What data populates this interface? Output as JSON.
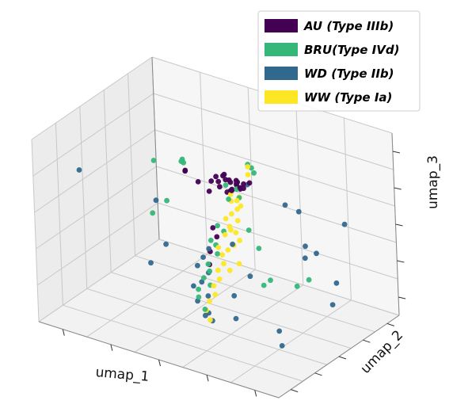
{
  "chart_data": {
    "type": "scatter",
    "projection": "3d",
    "title": "",
    "xlabel": "umap_1",
    "ylabel": "umap_2",
    "zlabel": "umap_3",
    "tick_labels_shown": false,
    "grid": true,
    "legend_position": "top-right",
    "series": [
      {
        "name": "AU (Type IIIb)",
        "color": "#440154",
        "points": [
          [
            5.2,
            5.0,
            7.6
          ],
          [
            5.4,
            5.2,
            7.7
          ],
          [
            5.6,
            5.1,
            7.8
          ],
          [
            5.8,
            5.3,
            7.6
          ],
          [
            6.0,
            5.2,
            7.5
          ],
          [
            5.3,
            4.9,
            7.4
          ],
          [
            5.7,
            5.0,
            7.3
          ],
          [
            5.9,
            5.1,
            7.9
          ],
          [
            6.1,
            5.3,
            7.7
          ],
          [
            5.5,
            5.4,
            7.5
          ],
          [
            5.6,
            5.3,
            7.2
          ],
          [
            5.4,
            5.0,
            8.0
          ],
          [
            6.2,
            5.1,
            7.6
          ],
          [
            5.8,
            4.9,
            7.4
          ],
          [
            5.0,
            5.2,
            7.7
          ],
          [
            6.3,
            5.4,
            7.8
          ],
          [
            5.7,
            5.5,
            7.4
          ],
          [
            5.5,
            5.1,
            7.1
          ],
          [
            4.9,
            5.0,
            7.5
          ],
          [
            6.0,
            5.0,
            7.9
          ],
          [
            5.3,
            5.3,
            7.9
          ],
          [
            5.9,
            5.4,
            7.3
          ],
          [
            3.4,
            5.8,
            7.1
          ],
          [
            3.5,
            5.6,
            7.2
          ],
          [
            4.8,
            5.0,
            6.9
          ],
          [
            4.4,
            4.9,
            7.3
          ],
          [
            5.1,
            4.6,
            5.2
          ],
          [
            5.2,
            4.7,
            4.7
          ],
          [
            5.0,
            4.5,
            3.9
          ],
          [
            4.9,
            4.6,
            3.1
          ]
        ]
      },
      {
        "name": "BRU(Type IVd)",
        "color": "#35b779",
        "points": [
          [
            3.3,
            5.7,
            7.6
          ],
          [
            3.4,
            5.6,
            7.8
          ],
          [
            3.5,
            5.5,
            7.7
          ],
          [
            6.2,
            5.8,
            8.4
          ],
          [
            6.4,
            5.6,
            8.3
          ],
          [
            6.1,
            5.7,
            8.6
          ],
          [
            5.4,
            5.2,
            7.4
          ],
          [
            5.8,
            5.3,
            7.3
          ],
          [
            5.6,
            5.0,
            6.8
          ],
          [
            6.0,
            5.1,
            7.0
          ],
          [
            2.4,
            5.2,
            7.5
          ],
          [
            3.2,
            4.6,
            5.9
          ],
          [
            3.0,
            3.8,
            5.5
          ],
          [
            5.3,
            4.6,
            5.4
          ],
          [
            5.4,
            4.9,
            5.0
          ],
          [
            5.1,
            4.4,
            4.6
          ],
          [
            5.2,
            4.6,
            4.3
          ],
          [
            5.3,
            4.5,
            3.9
          ],
          [
            5.0,
            4.3,
            3.3
          ],
          [
            5.1,
            4.2,
            3.0
          ],
          [
            4.9,
            4.1,
            2.6
          ],
          [
            5.0,
            4.4,
            2.1
          ],
          [
            4.6,
            4.2,
            1.8
          ],
          [
            4.7,
            4.0,
            1.5
          ],
          [
            5.0,
            3.9,
            1.0
          ],
          [
            7.6,
            4.3,
            3.5
          ],
          [
            7.0,
            4.9,
            2.7
          ],
          [
            8.6,
            5.5,
            3.4
          ],
          [
            8.3,
            5.1,
            3.1
          ],
          [
            6.3,
            5.2,
            5.3
          ],
          [
            6.8,
            5.0,
            4.6
          ]
        ]
      },
      {
        "name": "WD (Type IIb)",
        "color": "#31688e",
        "points": [
          [
            0.6,
            2.6,
            7.4
          ],
          [
            7.3,
            6.3,
            6.6
          ],
          [
            6.0,
            5.8,
            7.4
          ],
          [
            2.8,
            4.5,
            5.8
          ],
          [
            5.8,
            4.8,
            4.5
          ],
          [
            5.0,
            4.4,
            4.1
          ],
          [
            4.8,
            4.3,
            3.6
          ],
          [
            4.6,
            4.2,
            3.1
          ],
          [
            4.9,
            4.5,
            2.7
          ],
          [
            4.7,
            4.3,
            2.2
          ],
          [
            5.0,
            4.2,
            1.6
          ],
          [
            4.6,
            4.1,
            1.2
          ],
          [
            5.1,
            4.0,
            0.8
          ],
          [
            5.3,
            3.9,
            0.5
          ],
          [
            4.8,
            4.3,
            0.4
          ],
          [
            4.4,
            4.2,
            1.9
          ],
          [
            3.2,
            4.4,
            3.6
          ],
          [
            3.0,
            3.5,
            2.9
          ],
          [
            6.7,
            4.4,
            3.3
          ],
          [
            6.2,
            4.0,
            2.2
          ],
          [
            6.5,
            3.5,
            1.3
          ],
          [
            8.1,
            3.9,
            1.1
          ],
          [
            8.4,
            3.5,
            0.6
          ],
          [
            8.8,
            5.8,
            4.8
          ],
          [
            8.5,
            5.5,
            5.2
          ],
          [
            9.6,
            5.8,
            3.5
          ],
          [
            9.3,
            6.0,
            2.1
          ],
          [
            9.1,
            7.6,
            5.7
          ],
          [
            7.5,
            7.0,
            6.0
          ],
          [
            7.9,
            6.6,
            3.8
          ]
        ]
      },
      {
        "name": "WW (Type Ia)",
        "color": "#fde725",
        "points": [
          [
            5.7,
            5.0,
            7.1
          ],
          [
            5.9,
            5.1,
            6.8
          ],
          [
            6.0,
            5.2,
            6.5
          ],
          [
            5.8,
            5.3,
            6.2
          ],
          [
            5.6,
            5.2,
            5.9
          ],
          [
            5.4,
            5.1,
            5.6
          ],
          [
            5.6,
            5.0,
            5.3
          ],
          [
            5.8,
            5.1,
            5.0
          ],
          [
            6.0,
            5.0,
            4.7
          ],
          [
            5.8,
            4.9,
            4.4
          ],
          [
            5.6,
            4.8,
            4.1
          ],
          [
            5.4,
            4.7,
            3.8
          ],
          [
            5.5,
            4.6,
            3.4
          ],
          [
            5.3,
            4.5,
            3.0
          ],
          [
            5.4,
            4.4,
            2.6
          ],
          [
            5.2,
            4.3,
            2.2
          ],
          [
            5.3,
            4.2,
            1.8
          ],
          [
            5.1,
            4.1,
            1.4
          ],
          [
            5.0,
            4.0,
            0.9
          ],
          [
            5.2,
            3.9,
            0.5
          ],
          [
            6.3,
            5.3,
            8.3
          ],
          [
            6.2,
            5.5,
            8.6
          ],
          [
            5.9,
            5.3,
            6.9
          ],
          [
            5.6,
            5.2,
            6.6
          ],
          [
            5.9,
            5.1,
            5.7
          ],
          [
            5.7,
            4.9,
            5.2
          ],
          [
            5.5,
            4.8,
            4.9
          ],
          [
            5.3,
            4.6,
            4.2
          ],
          [
            6.1,
            4.7,
            3.6
          ],
          [
            5.8,
            4.5,
            3.2
          ]
        ]
      }
    ]
  }
}
